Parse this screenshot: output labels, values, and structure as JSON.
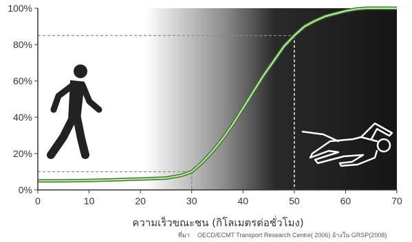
{
  "chart_data": {
    "type": "line",
    "title": "",
    "xlabel": "ความเร็วขณะชน (กิโลเมตรต่อชั่วโมง)",
    "ylabel": "",
    "xlim": [
      0,
      70
    ],
    "ylim": [
      0,
      100
    ],
    "x_ticks": [
      "0",
      "10",
      "20",
      "30",
      "40",
      "50",
      "60",
      "70"
    ],
    "y_ticks": [
      "0%",
      "20%",
      "40%",
      "60%",
      "80%",
      "100%"
    ],
    "grid": false,
    "series": [
      {
        "x": [
          0,
          5,
          10,
          15,
          20,
          25,
          28,
          30,
          32,
          34,
          36,
          38,
          40,
          42,
          44,
          46,
          48,
          50,
          52,
          54,
          56,
          58,
          60,
          62,
          64,
          66,
          70
        ],
        "y": [
          5,
          5,
          5.2,
          5.6,
          6,
          6.5,
          8,
          10,
          15,
          21,
          28,
          36,
          45,
          54,
          63,
          71,
          79,
          85,
          90,
          93,
          95.5,
          97,
          98.5,
          99.5,
          100,
          100,
          100
        ]
      }
    ],
    "reference_points": [
      {
        "x": 30,
        "y": 10
      },
      {
        "x": 50,
        "y": 85
      }
    ],
    "colors": {
      "line": "#c8e6b0",
      "line_outline": "#3a7a2a",
      "guide": "#888888",
      "background_dark": "#1a1a1a",
      "figure": "#222222",
      "outline_figure": "#ffffff"
    }
  },
  "source_text": {
    "prefix": "ที่มา",
    "body": "OECD/ECMT Transport Research Centre( 2006) อ้างใน   GRSP(2008)"
  },
  "icons": [
    "pedestrian-walking-icon",
    "victim-outline-icon"
  ]
}
